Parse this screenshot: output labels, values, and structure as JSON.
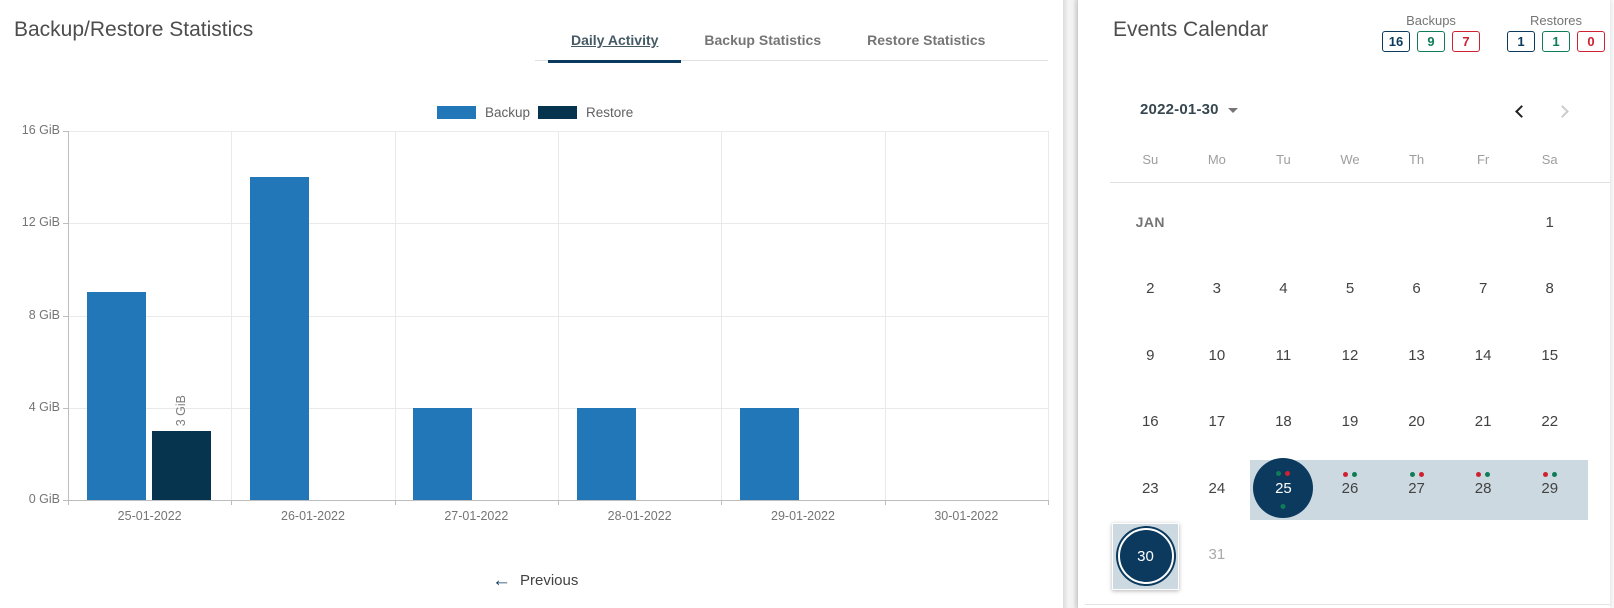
{
  "colors": {
    "backup_blue": "#2277b8",
    "navy": "#0b3a5e",
    "green": "#0e7c56",
    "red": "#d02130",
    "band": "#ccd9e0"
  },
  "left_panel": {
    "title": "Backup/Restore Statistics",
    "tabs": [
      {
        "label": "Daily Activity",
        "active": true
      },
      {
        "label": "Backup Statistics",
        "active": false
      },
      {
        "label": "Restore Statistics",
        "active": false
      }
    ],
    "previous_label": "Previous",
    "previous_icon": "←"
  },
  "chart_data": {
    "type": "bar",
    "title": "Daily Activity",
    "categories": [
      "25-01-2022",
      "26-01-2022",
      "27-01-2022",
      "28-01-2022",
      "29-01-2022",
      "30-01-2022"
    ],
    "series": [
      {
        "name": "Backup",
        "color": "#2277b8",
        "values": [
          9,
          14,
          4,
          4,
          4,
          0
        ]
      },
      {
        "name": "Restore",
        "color": "#06344f",
        "values": [
          3,
          0,
          0,
          0,
          0,
          0
        ]
      }
    ],
    "bar_labels": [
      {
        "series_index": 1,
        "category_index": 0,
        "text": "3 GiB"
      }
    ],
    "xlabel": "",
    "ylabel": "",
    "yticks": [
      "0 GiB",
      "4 GiB",
      "8 GiB",
      "12 GiB",
      "16 GiB"
    ],
    "ylim": [
      0,
      16
    ],
    "grid": true,
    "legend_position": "top-center"
  },
  "calendar": {
    "title": "Events Calendar",
    "counters": [
      {
        "label": "Backups",
        "values": [
          {
            "value": "16",
            "color": "navy"
          },
          {
            "value": "9",
            "color": "green"
          },
          {
            "value": "7",
            "color": "red"
          }
        ]
      },
      {
        "label": "Restores",
        "values": [
          {
            "value": "1",
            "color": "navy"
          },
          {
            "value": "1",
            "color": "green"
          },
          {
            "value": "0",
            "color": "red"
          }
        ]
      }
    ],
    "month_selector": "2022-01-30",
    "day_headers": [
      "Su",
      "Mo",
      "Tu",
      "We",
      "Th",
      "Fr",
      "Sa"
    ],
    "weeks": [
      {
        "cells": [
          {
            "text": "JAN",
            "type": "month-label"
          },
          {},
          {},
          {},
          {},
          {},
          {
            "text": "1",
            "type": "day"
          }
        ]
      },
      {
        "cells": [
          {
            "text": "2",
            "type": "day"
          },
          {
            "text": "3",
            "type": "day"
          },
          {
            "text": "4",
            "type": "day"
          },
          {
            "text": "5",
            "type": "day"
          },
          {
            "text": "6",
            "type": "day"
          },
          {
            "text": "7",
            "type": "day"
          },
          {
            "text": "8",
            "type": "day"
          }
        ]
      },
      {
        "cells": [
          {
            "text": "9",
            "type": "day"
          },
          {
            "text": "10",
            "type": "day"
          },
          {
            "text": "11",
            "type": "day"
          },
          {
            "text": "12",
            "type": "day"
          },
          {
            "text": "13",
            "type": "day"
          },
          {
            "text": "14",
            "type": "day"
          },
          {
            "text": "15",
            "type": "day"
          }
        ]
      },
      {
        "cells": [
          {
            "text": "16",
            "type": "day"
          },
          {
            "text": "17",
            "type": "day"
          },
          {
            "text": "18",
            "type": "day"
          },
          {
            "text": "19",
            "type": "day"
          },
          {
            "text": "20",
            "type": "day"
          },
          {
            "text": "21",
            "type": "day"
          },
          {
            "text": "22",
            "type": "day"
          }
        ]
      },
      {
        "band_start_col": 2,
        "cells": [
          {
            "text": "23",
            "type": "day"
          },
          {
            "text": "24",
            "type": "day"
          },
          {
            "text": "25",
            "type": "day",
            "circled": true,
            "dots_above": [
              "green",
              "red"
            ],
            "dot_below": "green"
          },
          {
            "text": "26",
            "type": "day",
            "dots_above": [
              "red",
              "green"
            ]
          },
          {
            "text": "27",
            "type": "day",
            "dots_above": [
              "green",
              "red"
            ]
          },
          {
            "text": "28",
            "type": "day",
            "dots_above": [
              "red",
              "green"
            ]
          },
          {
            "text": "29",
            "type": "day",
            "dots_above": [
              "red",
              "green"
            ]
          }
        ]
      },
      {
        "cells": [
          {
            "text": "30",
            "type": "day",
            "selected": true
          },
          {
            "text": "31",
            "type": "day",
            "muted": true
          },
          {},
          {},
          {},
          {},
          {}
        ]
      }
    ]
  }
}
